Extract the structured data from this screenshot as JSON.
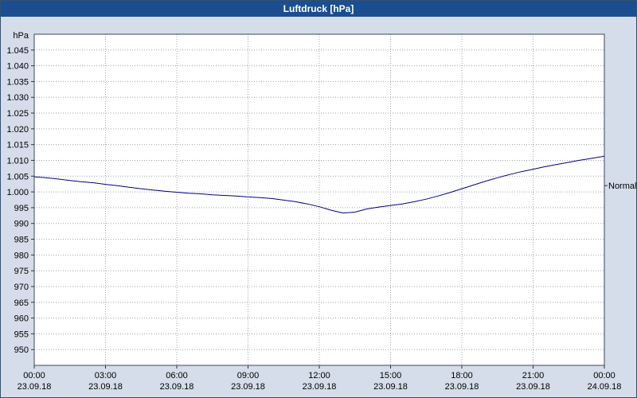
{
  "title_bar": {
    "title": "Luftdruck [hPa]"
  },
  "colors": {
    "title_bar_bg": "#1b4e91",
    "window_bg": "#d4dde9",
    "plot_bg": "#ffffff",
    "plot_border": "#3a4a5a",
    "grid": "#9aa4ae",
    "line": "#000080"
  },
  "chart_data": {
    "type": "line",
    "title": "Luftdruck [hPa]",
    "xlabel": "",
    "ylabel": "hPa",
    "ylim": [
      945,
      1050
    ],
    "xlim_hours": [
      0,
      24
    ],
    "grid": true,
    "legend_position": "none",
    "y_ticks": [
      {
        "value": 1045,
        "label": "1.045"
      },
      {
        "value": 1040,
        "label": "1.040"
      },
      {
        "value": 1035,
        "label": "1.035"
      },
      {
        "value": 1030,
        "label": "1.030"
      },
      {
        "value": 1025,
        "label": "1.025"
      },
      {
        "value": 1020,
        "label": "1.020"
      },
      {
        "value": 1015,
        "label": "1.015"
      },
      {
        "value": 1010,
        "label": "1.010"
      },
      {
        "value": 1005,
        "label": "1.005"
      },
      {
        "value": 1000,
        "label": "1.000"
      },
      {
        "value": 995,
        "label": "995"
      },
      {
        "value": 990,
        "label": "990"
      },
      {
        "value": 985,
        "label": "985"
      },
      {
        "value": 980,
        "label": "980"
      },
      {
        "value": 975,
        "label": "975"
      },
      {
        "value": 970,
        "label": "970"
      },
      {
        "value": 965,
        "label": "965"
      },
      {
        "value": 960,
        "label": "960"
      },
      {
        "value": 955,
        "label": "955"
      },
      {
        "value": 950,
        "label": "950"
      }
    ],
    "x_ticks": [
      {
        "hour": 0,
        "time": "00:00",
        "date": "23.09.18"
      },
      {
        "hour": 3,
        "time": "03:00",
        "date": "23.09.18"
      },
      {
        "hour": 6,
        "time": "06:00",
        "date": "23.09.18"
      },
      {
        "hour": 9,
        "time": "09:00",
        "date": "23.09.18"
      },
      {
        "hour": 12,
        "time": "12:00",
        "date": "23.09.18"
      },
      {
        "hour": 15,
        "time": "15:00",
        "date": "23.09.18"
      },
      {
        "hour": 18,
        "time": "18:00",
        "date": "23.09.18"
      },
      {
        "hour": 21,
        "time": "21:00",
        "date": "23.09.18"
      },
      {
        "hour": 24,
        "time": "00:00",
        "date": "24.09.18"
      }
    ],
    "annotation": {
      "label": "Normal",
      "value": 1002
    },
    "series": [
      {
        "name": "Luftdruck",
        "color": "#000080",
        "points": [
          [
            0,
            1004.8
          ],
          [
            0.5,
            1004.5
          ],
          [
            1,
            1004.1
          ],
          [
            1.5,
            1003.6
          ],
          [
            2,
            1003.2
          ],
          [
            2.5,
            1002.9
          ],
          [
            3,
            1002.4
          ],
          [
            3.5,
            1002.0
          ],
          [
            4,
            1001.5
          ],
          [
            4.5,
            1001.0
          ],
          [
            5,
            1000.6
          ],
          [
            5.5,
            1000.2
          ],
          [
            6,
            999.9
          ],
          [
            6.5,
            999.6
          ],
          [
            7,
            999.4
          ],
          [
            7.5,
            999.1
          ],
          [
            8,
            998.9
          ],
          [
            8.5,
            998.7
          ],
          [
            9,
            998.4
          ],
          [
            9.5,
            998.2
          ],
          [
            10,
            997.9
          ],
          [
            10.5,
            997.4
          ],
          [
            11,
            996.9
          ],
          [
            11.5,
            996.2
          ],
          [
            12,
            995.3
          ],
          [
            12.5,
            994.2
          ],
          [
            13,
            993.3
          ],
          [
            13.5,
            993.6
          ],
          [
            14,
            994.6
          ],
          [
            14.5,
            995.2
          ],
          [
            15,
            995.7
          ],
          [
            15.5,
            996.2
          ],
          [
            16,
            996.9
          ],
          [
            16.5,
            997.7
          ],
          [
            17,
            998.7
          ],
          [
            17.5,
            999.8
          ],
          [
            18,
            1001.0
          ],
          [
            18.5,
            1002.2
          ],
          [
            19,
            1003.4
          ],
          [
            19.5,
            1004.5
          ],
          [
            20,
            1005.5
          ],
          [
            20.5,
            1006.4
          ],
          [
            21,
            1007.2
          ],
          [
            21.5,
            1008.0
          ],
          [
            22,
            1008.7
          ],
          [
            22.5,
            1009.4
          ],
          [
            23,
            1010.1
          ],
          [
            23.5,
            1010.7
          ],
          [
            24,
            1011.3
          ]
        ]
      }
    ]
  }
}
